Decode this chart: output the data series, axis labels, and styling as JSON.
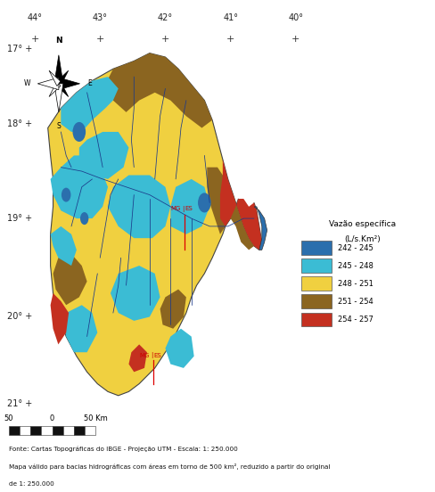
{
  "title": "",
  "coord_top_labels": [
    "44°",
    "43°",
    "42°",
    "41°",
    "40°"
  ],
  "coord_left_labels": [
    "17°",
    "18°",
    "19°",
    "20°",
    "21°"
  ],
  "legend_title_line1": "Vazão específica",
  "legend_title_line2": "(L/s.Km²)",
  "legend_items": [
    {
      "label": "242 - 245",
      "color": "#2b6fad"
    },
    {
      "label": "245 - 248",
      "color": "#3bbcd4"
    },
    {
      "label": "248 - 251",
      "color": "#f0d040"
    },
    {
      "label": "251 - 254",
      "color": "#8b6520"
    },
    {
      "label": "254 - 257",
      "color": "#c43020"
    }
  ],
  "footnote1": "Fonte: Cartas Topográficas do IBGE - Projeção UTM - Escala: 1: 250.000",
  "footnote2": "Mapa válido para bacias hidrográficas com áreas em torno de 500 km², reduzido a partir do original",
  "footnote3": "de 1: 250.000",
  "bg_color": "#ffffff"
}
